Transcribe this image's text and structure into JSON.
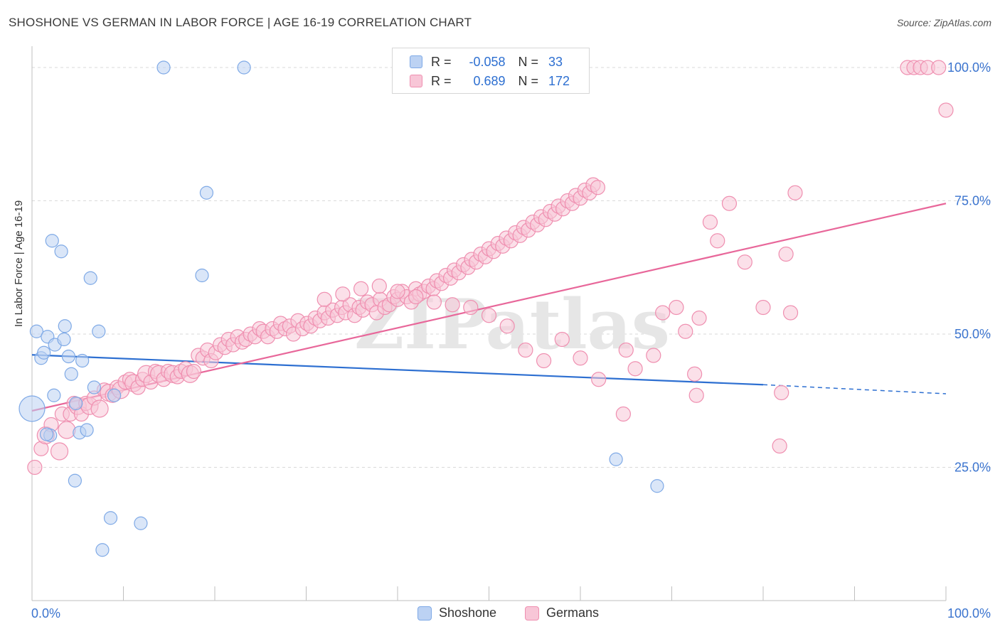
{
  "title": "SHOSHONE VS GERMAN IN LABOR FORCE | AGE 16-19 CORRELATION CHART",
  "source": "Source: ZipAtlas.com",
  "watermark": "ZIPatlas",
  "legend": {
    "rows": [
      {
        "name": "Shoshone",
        "r_label": "R =",
        "r_value": "-0.058",
        "n_label": "N =",
        "n_value": "33",
        "color": "#7ea9e6",
        "fill": "#bcd2f3"
      },
      {
        "name": "Germans",
        "r_label": "R =",
        "r_value": "0.689",
        "n_label": "N =",
        "n_value": "172",
        "color": "#ef8fb0",
        "fill": "#f8c6d7"
      }
    ]
  },
  "bottom_legend": [
    "Shoshone",
    "Germans"
  ],
  "chart_data": {
    "type": "scatter",
    "title": "SHOSHONE VS GERMAN IN LABOR FORCE | AGE 16-19 CORRELATION CHART",
    "xlabel": "",
    "ylabel": "In Labor Force | Age 16-19",
    "xlim": [
      0,
      100
    ],
    "ylim": [
      0,
      104
    ],
    "x_tick_labels": [
      "0.0%",
      "100.0%"
    ],
    "y_tick_labels": [
      "25.0%",
      "50.0%",
      "75.0%",
      "100.0%"
    ],
    "y_ticks": [
      25,
      50,
      75,
      100
    ],
    "grid": true,
    "series": [
      {
        "name": "Shoshone",
        "color": "#2d6fd1",
        "fill": "#bcd2f3",
        "stroke": "#7ea9e6",
        "trend": {
          "x0": 0,
          "y0": 46.1,
          "x1": 80,
          "y1": 40.5,
          "dash_to_x": 100,
          "dash_to_y": 38.8
        },
        "points": [
          [
            0,
            36,
            18
          ],
          [
            0.5,
            50.5,
            9
          ],
          [
            1,
            45.5,
            9
          ],
          [
            1.3,
            46.5,
            9
          ],
          [
            1.7,
            49.5,
            9
          ],
          [
            2,
            31,
            9
          ],
          [
            2.2,
            67.5,
            9
          ],
          [
            2.5,
            48,
            9
          ],
          [
            3.2,
            65.5,
            9
          ],
          [
            3.5,
            49,
            9
          ],
          [
            3.6,
            51.5,
            9
          ],
          [
            4,
            45.8,
            9
          ],
          [
            4.3,
            42.5,
            9
          ],
          [
            4.7,
            22.5,
            9
          ],
          [
            4.8,
            37,
            9
          ],
          [
            5.2,
            31.5,
            9
          ],
          [
            5.5,
            45,
            9
          ],
          [
            6,
            32,
            9
          ],
          [
            6.4,
            60.5,
            9
          ],
          [
            6.8,
            40,
            9
          ],
          [
            7.3,
            50.5,
            9
          ],
          [
            7.7,
            9.5,
            9
          ],
          [
            8.6,
            15.5,
            9
          ],
          [
            9,
            38.5,
            9
          ],
          [
            11.9,
            14.5,
            9
          ],
          [
            14.4,
            100,
            9
          ],
          [
            18.6,
            61,
            9
          ],
          [
            19.1,
            76.5,
            9
          ],
          [
            23.2,
            100,
            9
          ],
          [
            2.4,
            38.5,
            9
          ],
          [
            1.6,
            31.2,
            9
          ],
          [
            63.9,
            26.5,
            9
          ],
          [
            68.4,
            21.5,
            9
          ]
        ]
      },
      {
        "name": "Germans",
        "color": "#e8679a",
        "fill": "#f8c6d7",
        "stroke": "#ef8fb0",
        "trend": {
          "x0": 0,
          "y0": 35.6,
          "x1": 100,
          "y1": 74.5
        },
        "points": [
          [
            0.3,
            25,
            10
          ],
          [
            1,
            28.5,
            10
          ],
          [
            1.5,
            31,
            12
          ],
          [
            2.1,
            33,
            10
          ],
          [
            3,
            28,
            12
          ],
          [
            3.3,
            35,
            10
          ],
          [
            3.8,
            32,
            12
          ],
          [
            4.2,
            35,
            10
          ],
          [
            4.6,
            37,
            10
          ],
          [
            5,
            36.5,
            12
          ],
          [
            5.4,
            35,
            10
          ],
          [
            5.9,
            37,
            10
          ],
          [
            6.3,
            36.5,
            12
          ],
          [
            6.8,
            38,
            10
          ],
          [
            7.4,
            36,
            12
          ],
          [
            7.9,
            39.5,
            10
          ],
          [
            8.4,
            39,
            12
          ],
          [
            8.8,
            38.5,
            10
          ],
          [
            9.3,
            40,
            10
          ],
          [
            9.7,
            39.5,
            12
          ],
          [
            10.2,
            41,
            10
          ],
          [
            10.7,
            41.5,
            10
          ],
          [
            11.1,
            40.8,
            12
          ],
          [
            11.6,
            40,
            10
          ],
          [
            12.1,
            41.5,
            10
          ],
          [
            12.5,
            42.5,
            12
          ],
          [
            13,
            41,
            10
          ],
          [
            13.5,
            43,
            10
          ],
          [
            13.9,
            42.5,
            12
          ],
          [
            14.4,
            41.5,
            10
          ],
          [
            14.9,
            43,
            10
          ],
          [
            15.4,
            42.5,
            12
          ],
          [
            15.9,
            42,
            10
          ],
          [
            16.3,
            43,
            10
          ],
          [
            16.8,
            43.5,
            10
          ],
          [
            17.3,
            42.5,
            12
          ],
          [
            17.7,
            43,
            10
          ],
          [
            18.2,
            46,
            10
          ],
          [
            18.7,
            45.5,
            10
          ],
          [
            19.2,
            47,
            10
          ],
          [
            19.6,
            45,
            10
          ],
          [
            20.1,
            46.5,
            10
          ],
          [
            20.6,
            48,
            10
          ],
          [
            21.1,
            47.5,
            10
          ],
          [
            21.5,
            49,
            10
          ],
          [
            22,
            48,
            10
          ],
          [
            22.5,
            49.5,
            10
          ],
          [
            23,
            48.5,
            10
          ],
          [
            23.4,
            49,
            10
          ],
          [
            23.9,
            50,
            10
          ],
          [
            24.4,
            49.5,
            10
          ],
          [
            24.9,
            51,
            10
          ],
          [
            25.3,
            50.5,
            10
          ],
          [
            25.8,
            49.5,
            10
          ],
          [
            26.3,
            51,
            10
          ],
          [
            26.8,
            50.5,
            10
          ],
          [
            27.2,
            52,
            10
          ],
          [
            27.7,
            51,
            10
          ],
          [
            28.2,
            51.5,
            10
          ],
          [
            28.6,
            50,
            10
          ],
          [
            29.1,
            52.5,
            10
          ],
          [
            29.6,
            51,
            10
          ],
          [
            30.1,
            52,
            10
          ],
          [
            30.5,
            51.5,
            10
          ],
          [
            31,
            53,
            10
          ],
          [
            31.5,
            52.5,
            10
          ],
          [
            32,
            54,
            10
          ],
          [
            32.4,
            53,
            10
          ],
          [
            32.9,
            54.5,
            10
          ],
          [
            33.4,
            53.5,
            10
          ],
          [
            33.9,
            55,
            10
          ],
          [
            34.3,
            54,
            10
          ],
          [
            34.8,
            55.5,
            10
          ],
          [
            35.3,
            53.5,
            10
          ],
          [
            35.8,
            55,
            10
          ],
          [
            36.2,
            54.5,
            10
          ],
          [
            36.7,
            56,
            10
          ],
          [
            37.2,
            55.5,
            10
          ],
          [
            37.7,
            54,
            10
          ],
          [
            38.1,
            56.5,
            10
          ],
          [
            38.6,
            55,
            10
          ],
          [
            39.1,
            55.5,
            10
          ],
          [
            39.6,
            57,
            10
          ],
          [
            40,
            56.5,
            10
          ],
          [
            40.5,
            58,
            10
          ],
          [
            41,
            57,
            10
          ],
          [
            41.5,
            56,
            10
          ],
          [
            42,
            58.5,
            10
          ],
          [
            42.4,
            57.5,
            10
          ],
          [
            42.9,
            58,
            10
          ],
          [
            43.4,
            59,
            10
          ],
          [
            43.9,
            58.5,
            10
          ],
          [
            44.3,
            60,
            10
          ],
          [
            44.8,
            59.5,
            10
          ],
          [
            45.3,
            61,
            10
          ],
          [
            45.8,
            60.5,
            10
          ],
          [
            46.2,
            62,
            10
          ],
          [
            46.7,
            61.5,
            10
          ],
          [
            47.2,
            63,
            10
          ],
          [
            47.7,
            62.5,
            10
          ],
          [
            48.1,
            64,
            10
          ],
          [
            48.6,
            63.5,
            10
          ],
          [
            49.1,
            65,
            10
          ],
          [
            49.6,
            64.5,
            10
          ],
          [
            50,
            66,
            10
          ],
          [
            50.5,
            65.5,
            10
          ],
          [
            51,
            67,
            10
          ],
          [
            51.5,
            66.5,
            10
          ],
          [
            51.9,
            68,
            10
          ],
          [
            52.4,
            67.5,
            10
          ],
          [
            52.9,
            69,
            10
          ],
          [
            53.4,
            68.5,
            10
          ],
          [
            53.8,
            70,
            10
          ],
          [
            54.3,
            69.5,
            10
          ],
          [
            54.8,
            71,
            10
          ],
          [
            55.3,
            70.5,
            10
          ],
          [
            55.7,
            72,
            10
          ],
          [
            56.2,
            71.5,
            10
          ],
          [
            56.7,
            73,
            10
          ],
          [
            57.2,
            72.5,
            10
          ],
          [
            57.6,
            74,
            10
          ],
          [
            58.1,
            73.5,
            10
          ],
          [
            58.6,
            75,
            10
          ],
          [
            59.1,
            74.5,
            10
          ],
          [
            59.5,
            76,
            10
          ],
          [
            60,
            75.5,
            10
          ],
          [
            60.5,
            77,
            10
          ],
          [
            61,
            76.5,
            10
          ],
          [
            61.4,
            78,
            10
          ],
          [
            61.9,
            77.5,
            10
          ],
          [
            64.7,
            35,
            10
          ],
          [
            72.7,
            38.5,
            10
          ],
          [
            81.8,
            29,
            10
          ],
          [
            82,
            39,
            10
          ],
          [
            95.8,
            100,
            10
          ],
          [
            96.5,
            100,
            10
          ],
          [
            97.2,
            100,
            10
          ],
          [
            98,
            100,
            10
          ],
          [
            99.2,
            100,
            10
          ],
          [
            100,
            92,
            10
          ],
          [
            83.5,
            76.5,
            10
          ],
          [
            74.2,
            71,
            10
          ],
          [
            76.3,
            74.5,
            10
          ],
          [
            75,
            67.5,
            10
          ],
          [
            78,
            63.5,
            10
          ],
          [
            82.5,
            65,
            10
          ],
          [
            70.5,
            55,
            10
          ],
          [
            73,
            53,
            10
          ],
          [
            80,
            55,
            10
          ],
          [
            83,
            54,
            10
          ],
          [
            66,
            43.5,
            10
          ],
          [
            69,
            54,
            10
          ],
          [
            71.5,
            50.5,
            10
          ],
          [
            72.5,
            42.5,
            10
          ],
          [
            65,
            47,
            10
          ],
          [
            68,
            46,
            10
          ],
          [
            62,
            41.5,
            10
          ],
          [
            60,
            45.5,
            10
          ],
          [
            58,
            49,
            10
          ],
          [
            56,
            45,
            10
          ],
          [
            54,
            47,
            10
          ],
          [
            52,
            51.5,
            10
          ],
          [
            50,
            53.5,
            10
          ],
          [
            48,
            55,
            10
          ],
          [
            46,
            55.5,
            10
          ],
          [
            44,
            56,
            10
          ],
          [
            42,
            57,
            10
          ],
          [
            40,
            58,
            10
          ],
          [
            38,
            59,
            10
          ],
          [
            36,
            58.5,
            10
          ],
          [
            34,
            57.5,
            10
          ],
          [
            32,
            56.5,
            10
          ]
        ]
      }
    ]
  }
}
